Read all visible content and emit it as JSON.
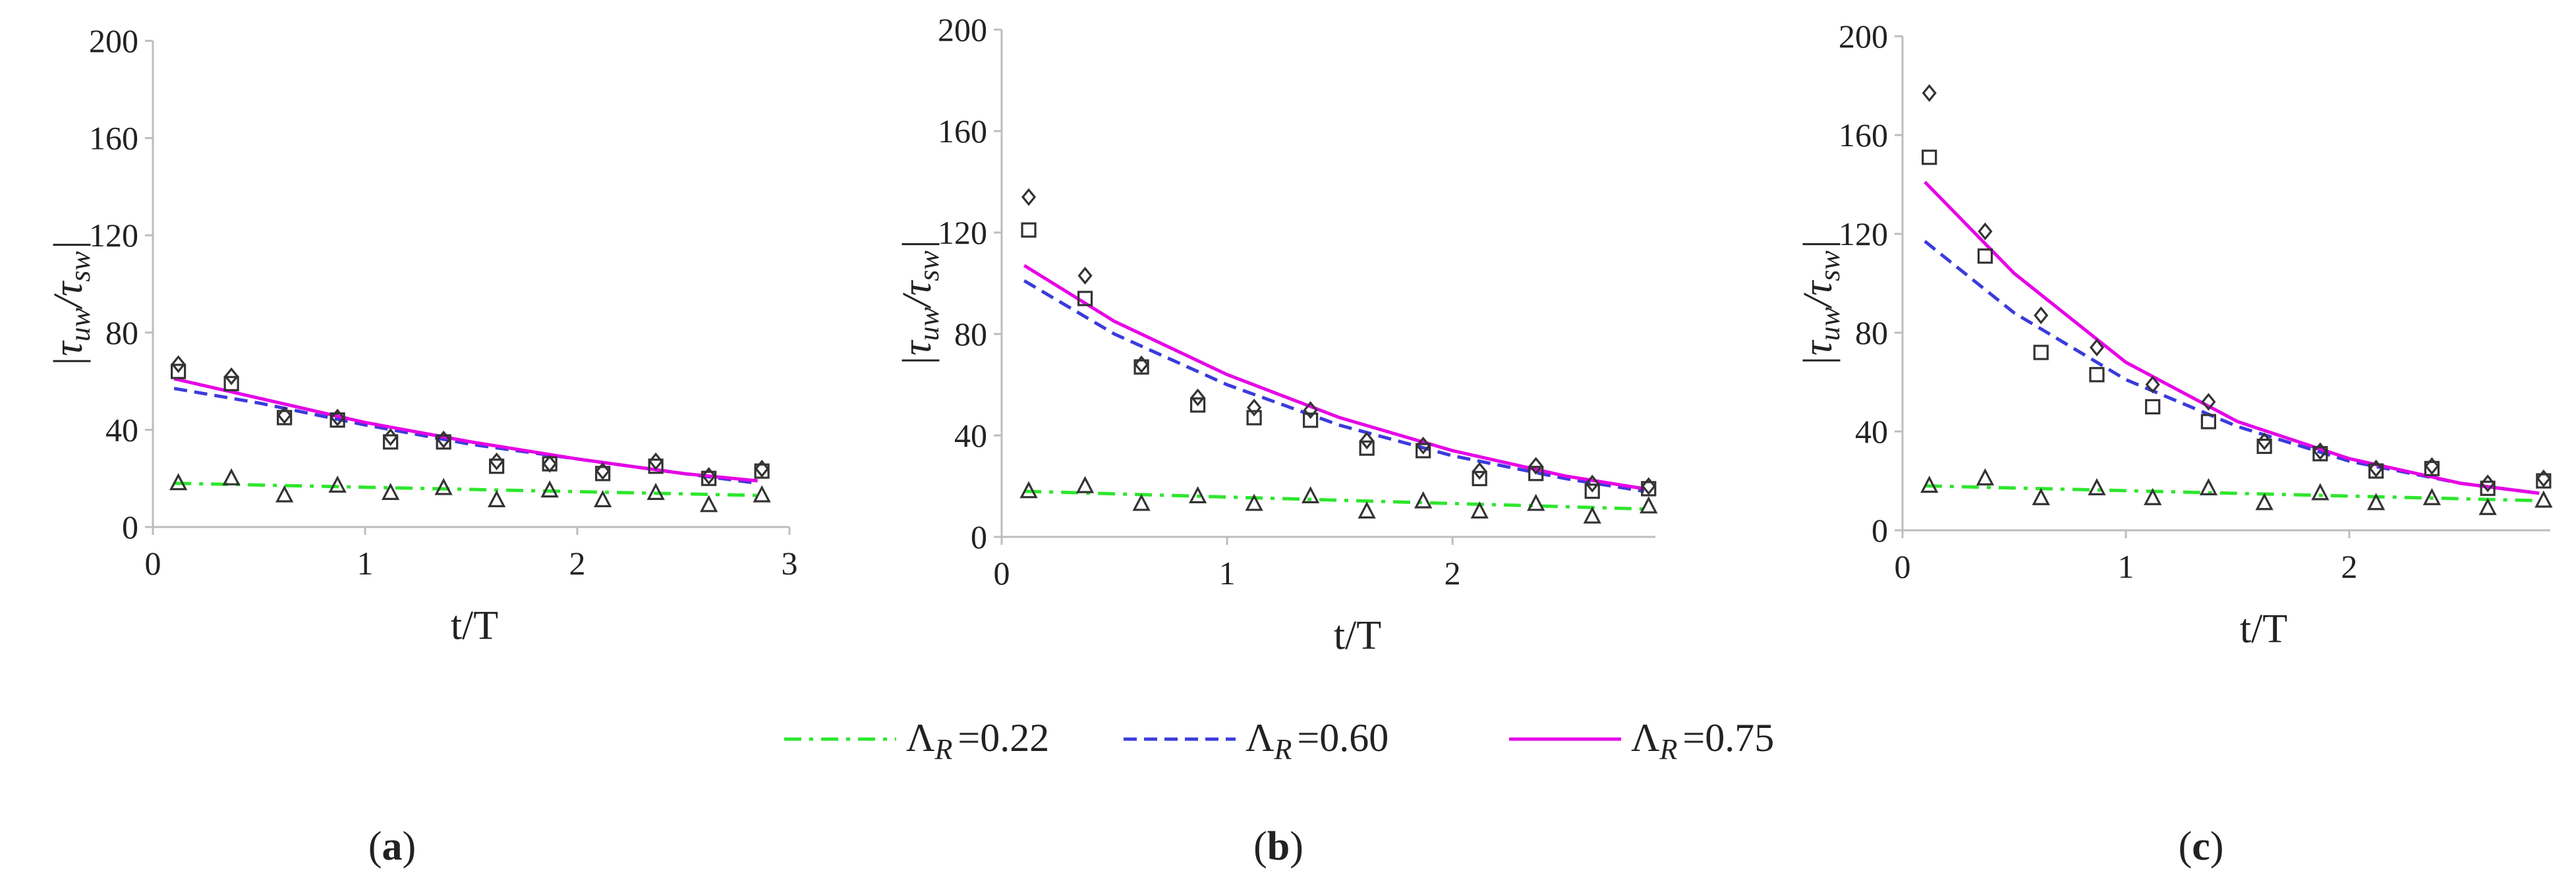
{
  "legend": [
    {
      "label": "Λ",
      "sub": "R",
      "value": "=0.22",
      "color": "#2ee62e",
      "dash": "dashdot"
    },
    {
      "label": "Λ",
      "sub": "R",
      "value": "=0.60",
      "color": "#3b3bdc",
      "dash": "dashed"
    },
    {
      "label": "Λ",
      "sub": "R",
      "value": "=0.75",
      "color": "#e600e6",
      "dash": "solid"
    }
  ],
  "chart_data": [
    {
      "type": "line",
      "panel_label": "a",
      "xlabel": "t/T",
      "ylabel": "|τuw/τsw|",
      "xlim": [
        0,
        3
      ],
      "ylim": [
        0,
        200
      ],
      "xticks": [
        "0",
        "1",
        "2",
        "3"
      ],
      "yticks": [
        "0",
        "40",
        "80",
        "120",
        "160",
        "200"
      ],
      "series": [
        {
          "name": "ΛR=0.22",
          "x": [
            0.1,
            2.85
          ],
          "y": [
            18,
            13
          ]
        },
        {
          "name": "ΛR=0.60",
          "x": [
            0.1,
            0.5,
            1.0,
            1.5,
            2.0,
            2.5,
            2.85
          ],
          "y": [
            57,
            51,
            42,
            34,
            28,
            22,
            18
          ]
        },
        {
          "name": "ΛR=0.75",
          "x": [
            0.1,
            0.5,
            1.0,
            1.5,
            2.0,
            2.5,
            2.85
          ],
          "y": [
            61,
            53,
            43,
            35,
            28,
            22,
            19
          ]
        }
      ],
      "markers": {
        "x": [
          0.12,
          0.37,
          0.62,
          0.87,
          1.12,
          1.37,
          1.62,
          1.87,
          2.12,
          2.37,
          2.62,
          2.87
        ],
        "diamond": [
          67,
          62,
          46,
          45,
          37,
          36,
          27,
          26,
          23,
          27,
          21,
          24
        ],
        "square": [
          64,
          59,
          45,
          44,
          35,
          35,
          25,
          26,
          22,
          25,
          20,
          23
        ],
        "triangle": [
          18,
          20,
          13,
          17,
          14,
          16,
          11,
          15,
          11,
          14,
          9,
          13
        ]
      }
    },
    {
      "type": "line",
      "panel_label": "b",
      "xlabel": "t/T",
      "ylabel": "|τuw/τsw|",
      "xlim": [
        0,
        2.9
      ],
      "ylim": [
        0,
        200
      ],
      "xticks": [
        "0",
        "1",
        "2"
      ],
      "yticks": [
        "0",
        "40",
        "80",
        "120",
        "160",
        "200"
      ],
      "series": [
        {
          "name": "ΛR=0.22",
          "x": [
            0.1,
            2.85
          ],
          "y": [
            18,
            11
          ]
        },
        {
          "name": "ΛR=0.60",
          "x": [
            0.1,
            0.5,
            1.0,
            1.5,
            2.0,
            2.5,
            2.85
          ],
          "y": [
            101,
            80,
            60,
            44,
            32,
            23,
            18
          ]
        },
        {
          "name": "ΛR=0.75",
          "x": [
            0.1,
            0.5,
            1.0,
            1.5,
            2.0,
            2.5,
            2.85
          ],
          "y": [
            107,
            85,
            64,
            47,
            34,
            24,
            19
          ]
        }
      ],
      "markers": {
        "x": [
          0.12,
          0.37,
          0.62,
          0.87,
          1.12,
          1.37,
          1.62,
          1.87,
          2.12,
          2.37,
          2.62,
          2.87
        ],
        "diamond": [
          134,
          103,
          68,
          55,
          51,
          50,
          38,
          36,
          26,
          28,
          21,
          20
        ],
        "square": [
          121,
          94,
          67,
          52,
          47,
          46,
          35,
          34,
          23,
          25,
          18,
          19
        ],
        "triangle": [
          18,
          20,
          13,
          16,
          13,
          16,
          10,
          14,
          10,
          13,
          8,
          12
        ]
      }
    },
    {
      "type": "line",
      "panel_label": "c",
      "xlabel": "t/T",
      "ylabel": "|τuw/τsw|",
      "xlim": [
        0,
        2.9
      ],
      "ylim": [
        0,
        200
      ],
      "xticks": [
        "0",
        "1",
        "2"
      ],
      "yticks": [
        "0",
        "40",
        "80",
        "120",
        "160",
        "200"
      ],
      "series": [
        {
          "name": "ΛR=0.22",
          "x": [
            0.1,
            2.85
          ],
          "y": [
            18,
            12
          ]
        },
        {
          "name": "ΛR=0.60",
          "x": [
            0.1,
            0.5,
            1.0,
            1.5,
            2.0,
            2.5,
            2.85
          ],
          "y": [
            117,
            88,
            61,
            42,
            28,
            19,
            15
          ]
        },
        {
          "name": "ΛR=0.75",
          "x": [
            0.1,
            0.5,
            1.0,
            1.5,
            2.0,
            2.5,
            2.85
          ],
          "y": [
            141,
            104,
            68,
            44,
            29,
            19,
            15
          ]
        }
      ],
      "markers": {
        "x": [
          0.12,
          0.37,
          0.62,
          0.87,
          1.12,
          1.37,
          1.62,
          1.87,
          2.12,
          2.37,
          2.62,
          2.87
        ],
        "diamond": [
          177,
          121,
          87,
          74,
          59,
          52,
          36,
          32,
          25,
          26,
          19,
          21
        ],
        "square": [
          151,
          111,
          72,
          63,
          50,
          44,
          34,
          31,
          24,
          25,
          17,
          20
        ],
        "triangle": [
          18,
          21,
          13,
          17,
          13,
          17,
          11,
          15,
          11,
          13,
          9,
          12
        ]
      }
    }
  ]
}
